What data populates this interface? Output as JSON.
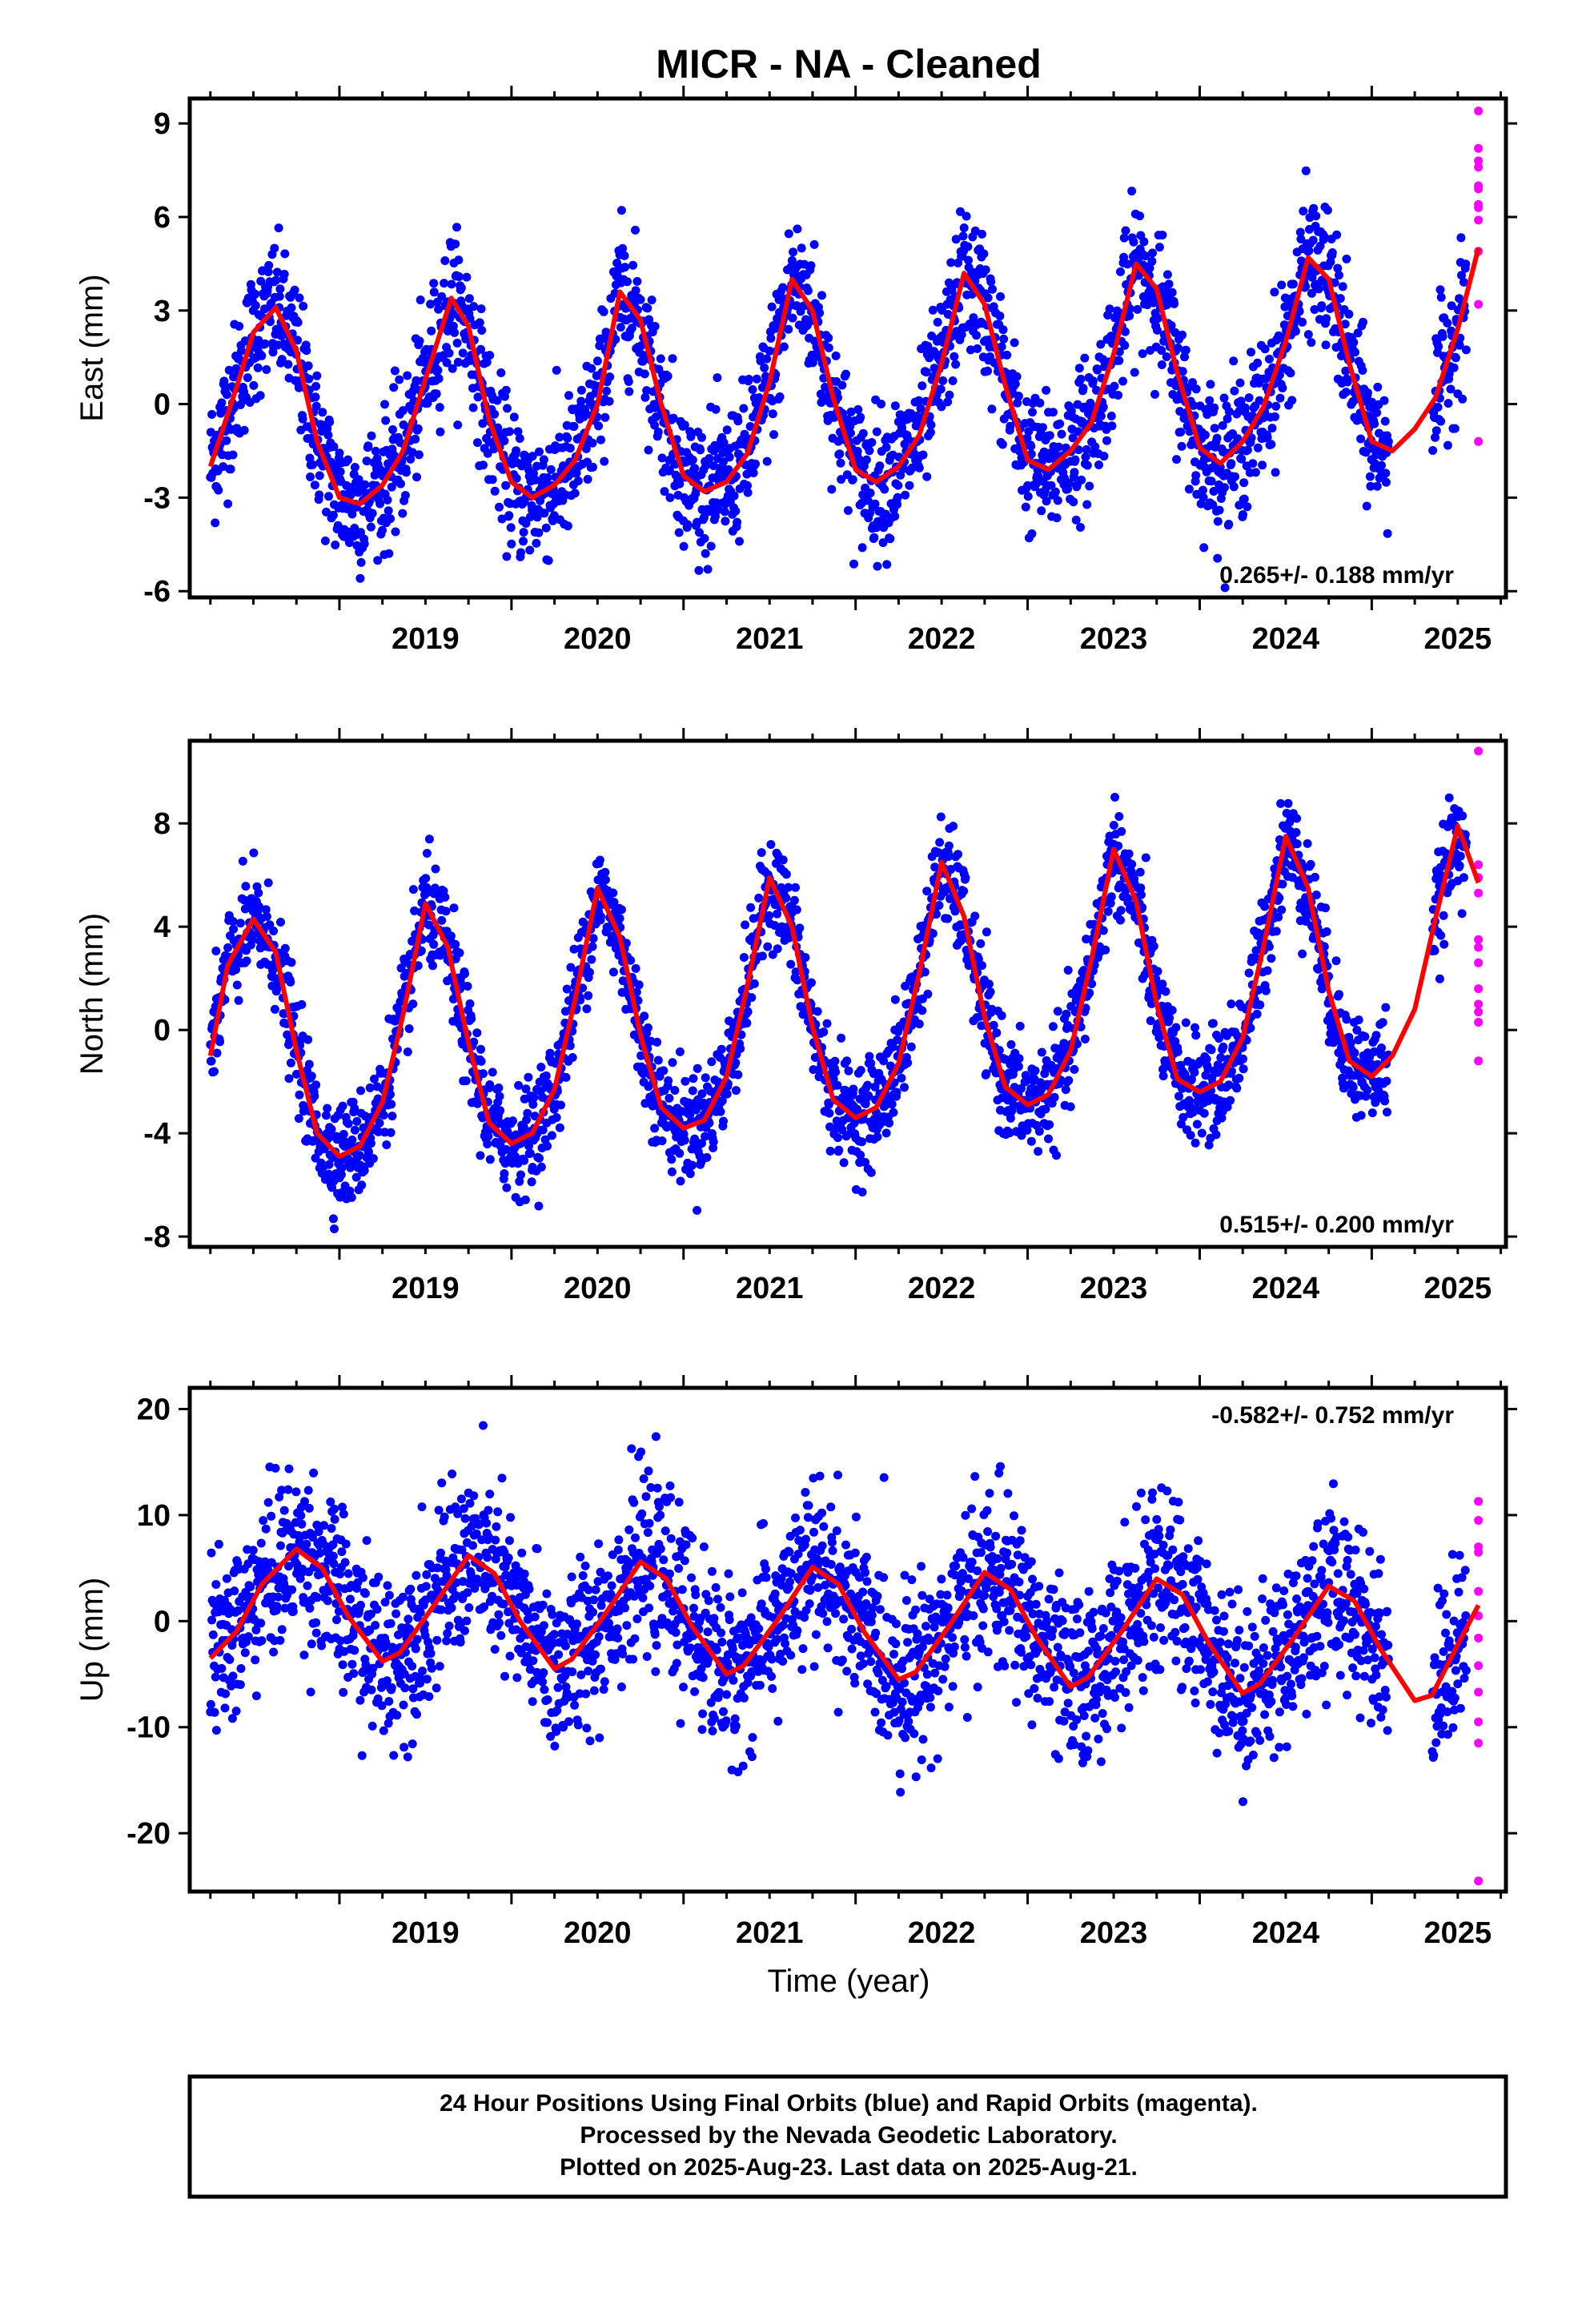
{
  "title": "MICR  - NA - Cleaned",
  "footer": {
    "lines": [
      "24 Hour Positions Using Final Orbits (blue) and Rapid Orbits (magenta).",
      "Processed by the Nevada Geodetic Laboratory.",
      "Plotted on 2025-Aug-23. Last data on 2025-Aug-21."
    ]
  },
  "xlabel": "Time (year)",
  "colors": {
    "final": "#0000ff",
    "rapid": "#ff00ff",
    "model": "#ff0000",
    "frame": "#000000"
  },
  "chart_data": [
    {
      "type": "scatter",
      "ylabel": "East (mm)",
      "xlim": [
        2018.13,
        2025.78
      ],
      "ylim": [
        -6.2,
        9.8
      ],
      "xticks": [
        2019,
        2020,
        2021,
        2022,
        2023,
        2024,
        2025
      ],
      "yticks": [
        -6,
        -3,
        0,
        3,
        6,
        9
      ],
      "rate_text": "0.265+/- 0.188 mm/yr",
      "rate_position": "bottom-right",
      "final_orbits": {
        "date_range": [
          2018.25,
          2025.55
        ],
        "gaps": [
          [
            2025.1,
            2025.35
          ]
        ],
        "scatter_mm": 1.1
      },
      "rapid_orbits": {
        "x": [
          2025.62,
          2025.62,
          2025.62,
          2025.62,
          2025.62,
          2025.62,
          2025.62,
          2025.62,
          2025.62,
          2025.62,
          2025.62,
          2025.62
        ],
        "y": [
          9.4,
          8.2,
          7.8,
          7.6,
          7.0,
          6.9,
          6.4,
          6.3,
          5.9,
          4.9,
          3.2,
          -1.2
        ]
      },
      "model": {
        "x": [
          2018.25,
          2018.4,
          2018.5,
          2018.63,
          2018.75,
          2018.87,
          2019.0,
          2019.12,
          2019.25,
          2019.37,
          2019.5,
          2019.65,
          2019.75,
          2019.87,
          2020.0,
          2020.12,
          2020.25,
          2020.37,
          2020.5,
          2020.63,
          2020.75,
          2020.87,
          2021.0,
          2021.12,
          2021.25,
          2021.37,
          2021.5,
          2021.63,
          2021.75,
          2021.87,
          2022.0,
          2022.12,
          2022.25,
          2022.37,
          2022.5,
          2022.63,
          2022.75,
          2022.87,
          2023.0,
          2023.12,
          2023.25,
          2023.37,
          2023.5,
          2023.63,
          2023.75,
          2023.87,
          2024.0,
          2024.12,
          2024.25,
          2024.37,
          2024.5,
          2024.63,
          2024.75,
          2024.87,
          2025.0,
          2025.12,
          2025.25,
          2025.37,
          2025.5,
          2025.62
        ],
        "y": [
          -2.0,
          0.5,
          2.3,
          3.1,
          1.7,
          -1.2,
          -3.0,
          -3.2,
          -2.6,
          -1.5,
          0.8,
          3.4,
          2.5,
          -0.5,
          -2.5,
          -3.0,
          -2.6,
          -1.8,
          0.0,
          3.6,
          2.7,
          0.0,
          -2.3,
          -2.8,
          -2.5,
          -1.6,
          0.7,
          4.0,
          3.0,
          0.2,
          -2.1,
          -2.5,
          -2.0,
          -1.0,
          1.3,
          4.2,
          3.2,
          0.6,
          -1.8,
          -2.1,
          -1.5,
          -0.6,
          1.6,
          4.5,
          3.7,
          1.0,
          -1.4,
          -1.9,
          -1.2,
          -0.1,
          2.0,
          4.7,
          4.0,
          1.3,
          -1.2,
          -1.5,
          -0.8,
          0.2,
          2.4,
          5.0
        ]
      }
    },
    {
      "type": "scatter",
      "ylabel": "North (mm)",
      "xlim": [
        2018.13,
        2025.78
      ],
      "ylim": [
        -8.4,
        11.2
      ],
      "xticks": [
        2019,
        2020,
        2021,
        2022,
        2023,
        2024,
        2025
      ],
      "yticks": [
        -8,
        -4,
        0,
        4,
        8
      ],
      "rate_text": "0.515+/- 0.200 mm/yr",
      "rate_position": "bottom-right",
      "final_orbits": {
        "date_range": [
          2018.25,
          2025.55
        ],
        "gaps": [
          [
            2025.1,
            2025.35
          ]
        ],
        "scatter_mm": 1.0
      },
      "rapid_orbits": {
        "x": [
          2025.62,
          2025.62,
          2025.62,
          2025.62,
          2025.62,
          2025.62,
          2025.62,
          2025.62,
          2025.62,
          2025.62,
          2025.62,
          2025.62
        ],
        "y": [
          10.8,
          6.4,
          5.9,
          5.3,
          3.5,
          3.2,
          2.6,
          1.6,
          1.0,
          0.7,
          0.3,
          -1.2
        ]
      },
      "model": {
        "x": [
          2018.25,
          2018.35,
          2018.5,
          2018.63,
          2018.75,
          2018.87,
          2019.0,
          2019.12,
          2019.25,
          2019.37,
          2019.5,
          2019.63,
          2019.75,
          2019.87,
          2020.0,
          2020.12,
          2020.25,
          2020.37,
          2020.5,
          2020.63,
          2020.75,
          2020.87,
          2021.0,
          2021.12,
          2021.25,
          2021.37,
          2021.5,
          2021.63,
          2021.75,
          2021.87,
          2022.0,
          2022.12,
          2022.25,
          2022.37,
          2022.5,
          2022.63,
          2022.75,
          2022.87,
          2023.0,
          2023.12,
          2023.25,
          2023.37,
          2023.5,
          2023.63,
          2023.75,
          2023.87,
          2024.0,
          2024.12,
          2024.25,
          2024.37,
          2024.5,
          2024.63,
          2024.75,
          2024.87,
          2025.0,
          2025.12,
          2025.25,
          2025.37,
          2025.5,
          2025.62
        ],
        "y": [
          -1.0,
          2.5,
          4.3,
          3.0,
          -0.8,
          -4.0,
          -4.9,
          -4.5,
          -2.8,
          0.6,
          4.9,
          3.2,
          -0.5,
          -3.6,
          -4.4,
          -4.0,
          -2.3,
          1.2,
          5.5,
          3.6,
          -0.2,
          -3.0,
          -3.8,
          -3.5,
          -1.8,
          1.7,
          5.9,
          4.0,
          0.1,
          -2.7,
          -3.4,
          -3.0,
          -1.3,
          2.2,
          6.5,
          4.4,
          0.5,
          -2.2,
          -2.9,
          -2.5,
          -0.8,
          2.7,
          7.0,
          5.0,
          1.0,
          -1.9,
          -2.4,
          -2.0,
          -0.3,
          3.2,
          7.5,
          5.5,
          1.5,
          -1.2,
          -1.8,
          -1.0,
          0.8,
          4.3,
          7.9,
          5.7
        ]
      }
    },
    {
      "type": "scatter",
      "ylabel": "Up (mm)",
      "xlim": [
        2018.13,
        2025.78
      ],
      "ylim": [
        -25.5,
        22.0
      ],
      "xticks": [
        2019,
        2020,
        2021,
        2022,
        2023,
        2024,
        2025
      ],
      "yticks": [
        -20,
        -10,
        0,
        10,
        20
      ],
      "rate_text": "-0.582+/- 0.752 mm/yr",
      "rate_position": "top-right",
      "final_orbits": {
        "date_range": [
          2018.25,
          2025.55
        ],
        "gaps": [
          [
            2025.1,
            2025.35
          ]
        ],
        "scatter_mm": 4.0
      },
      "rapid_orbits": {
        "x": [
          2025.62,
          2025.62,
          2025.62,
          2025.62,
          2025.62,
          2025.62,
          2025.62,
          2025.62,
          2025.62,
          2025.62,
          2025.62,
          2025.62
        ],
        "y": [
          11.3,
          9.5,
          7.0,
          6.5,
          2.8,
          0.5,
          -1.6,
          -4.2,
          -6.7,
          -9.5,
          -11.5,
          -24.5
        ]
      },
      "model": {
        "x": [
          2018.25,
          2018.4,
          2018.55,
          2018.75,
          2018.9,
          2019.05,
          2019.25,
          2019.35,
          2019.55,
          2019.75,
          2019.9,
          2020.05,
          2020.25,
          2020.35,
          2020.55,
          2020.75,
          2020.9,
          2021.05,
          2021.25,
          2021.35,
          2021.55,
          2021.75,
          2021.9,
          2022.05,
          2022.25,
          2022.35,
          2022.55,
          2022.75,
          2022.9,
          2023.05,
          2023.25,
          2023.35,
          2023.55,
          2023.75,
          2023.9,
          2024.05,
          2024.25,
          2024.35,
          2024.55,
          2024.75,
          2024.9,
          2025.05,
          2025.25,
          2025.35,
          2025.5,
          2025.62
        ],
        "y": [
          -3.5,
          -1.0,
          3.5,
          6.8,
          5.0,
          0.5,
          -3.8,
          -3.0,
          1.5,
          6.2,
          4.5,
          0.0,
          -4.5,
          -3.6,
          0.8,
          5.6,
          4.0,
          -0.5,
          -5.0,
          -4.2,
          0.2,
          5.1,
          3.5,
          -1.0,
          -5.5,
          -4.8,
          -0.3,
          4.6,
          3.0,
          -1.5,
          -6.2,
          -5.3,
          -0.9,
          4.0,
          2.5,
          -2.0,
          -6.8,
          -5.9,
          -1.5,
          3.3,
          1.9,
          -2.6,
          -7.5,
          -7.0,
          -2.2,
          1.5
        ]
      }
    }
  ]
}
